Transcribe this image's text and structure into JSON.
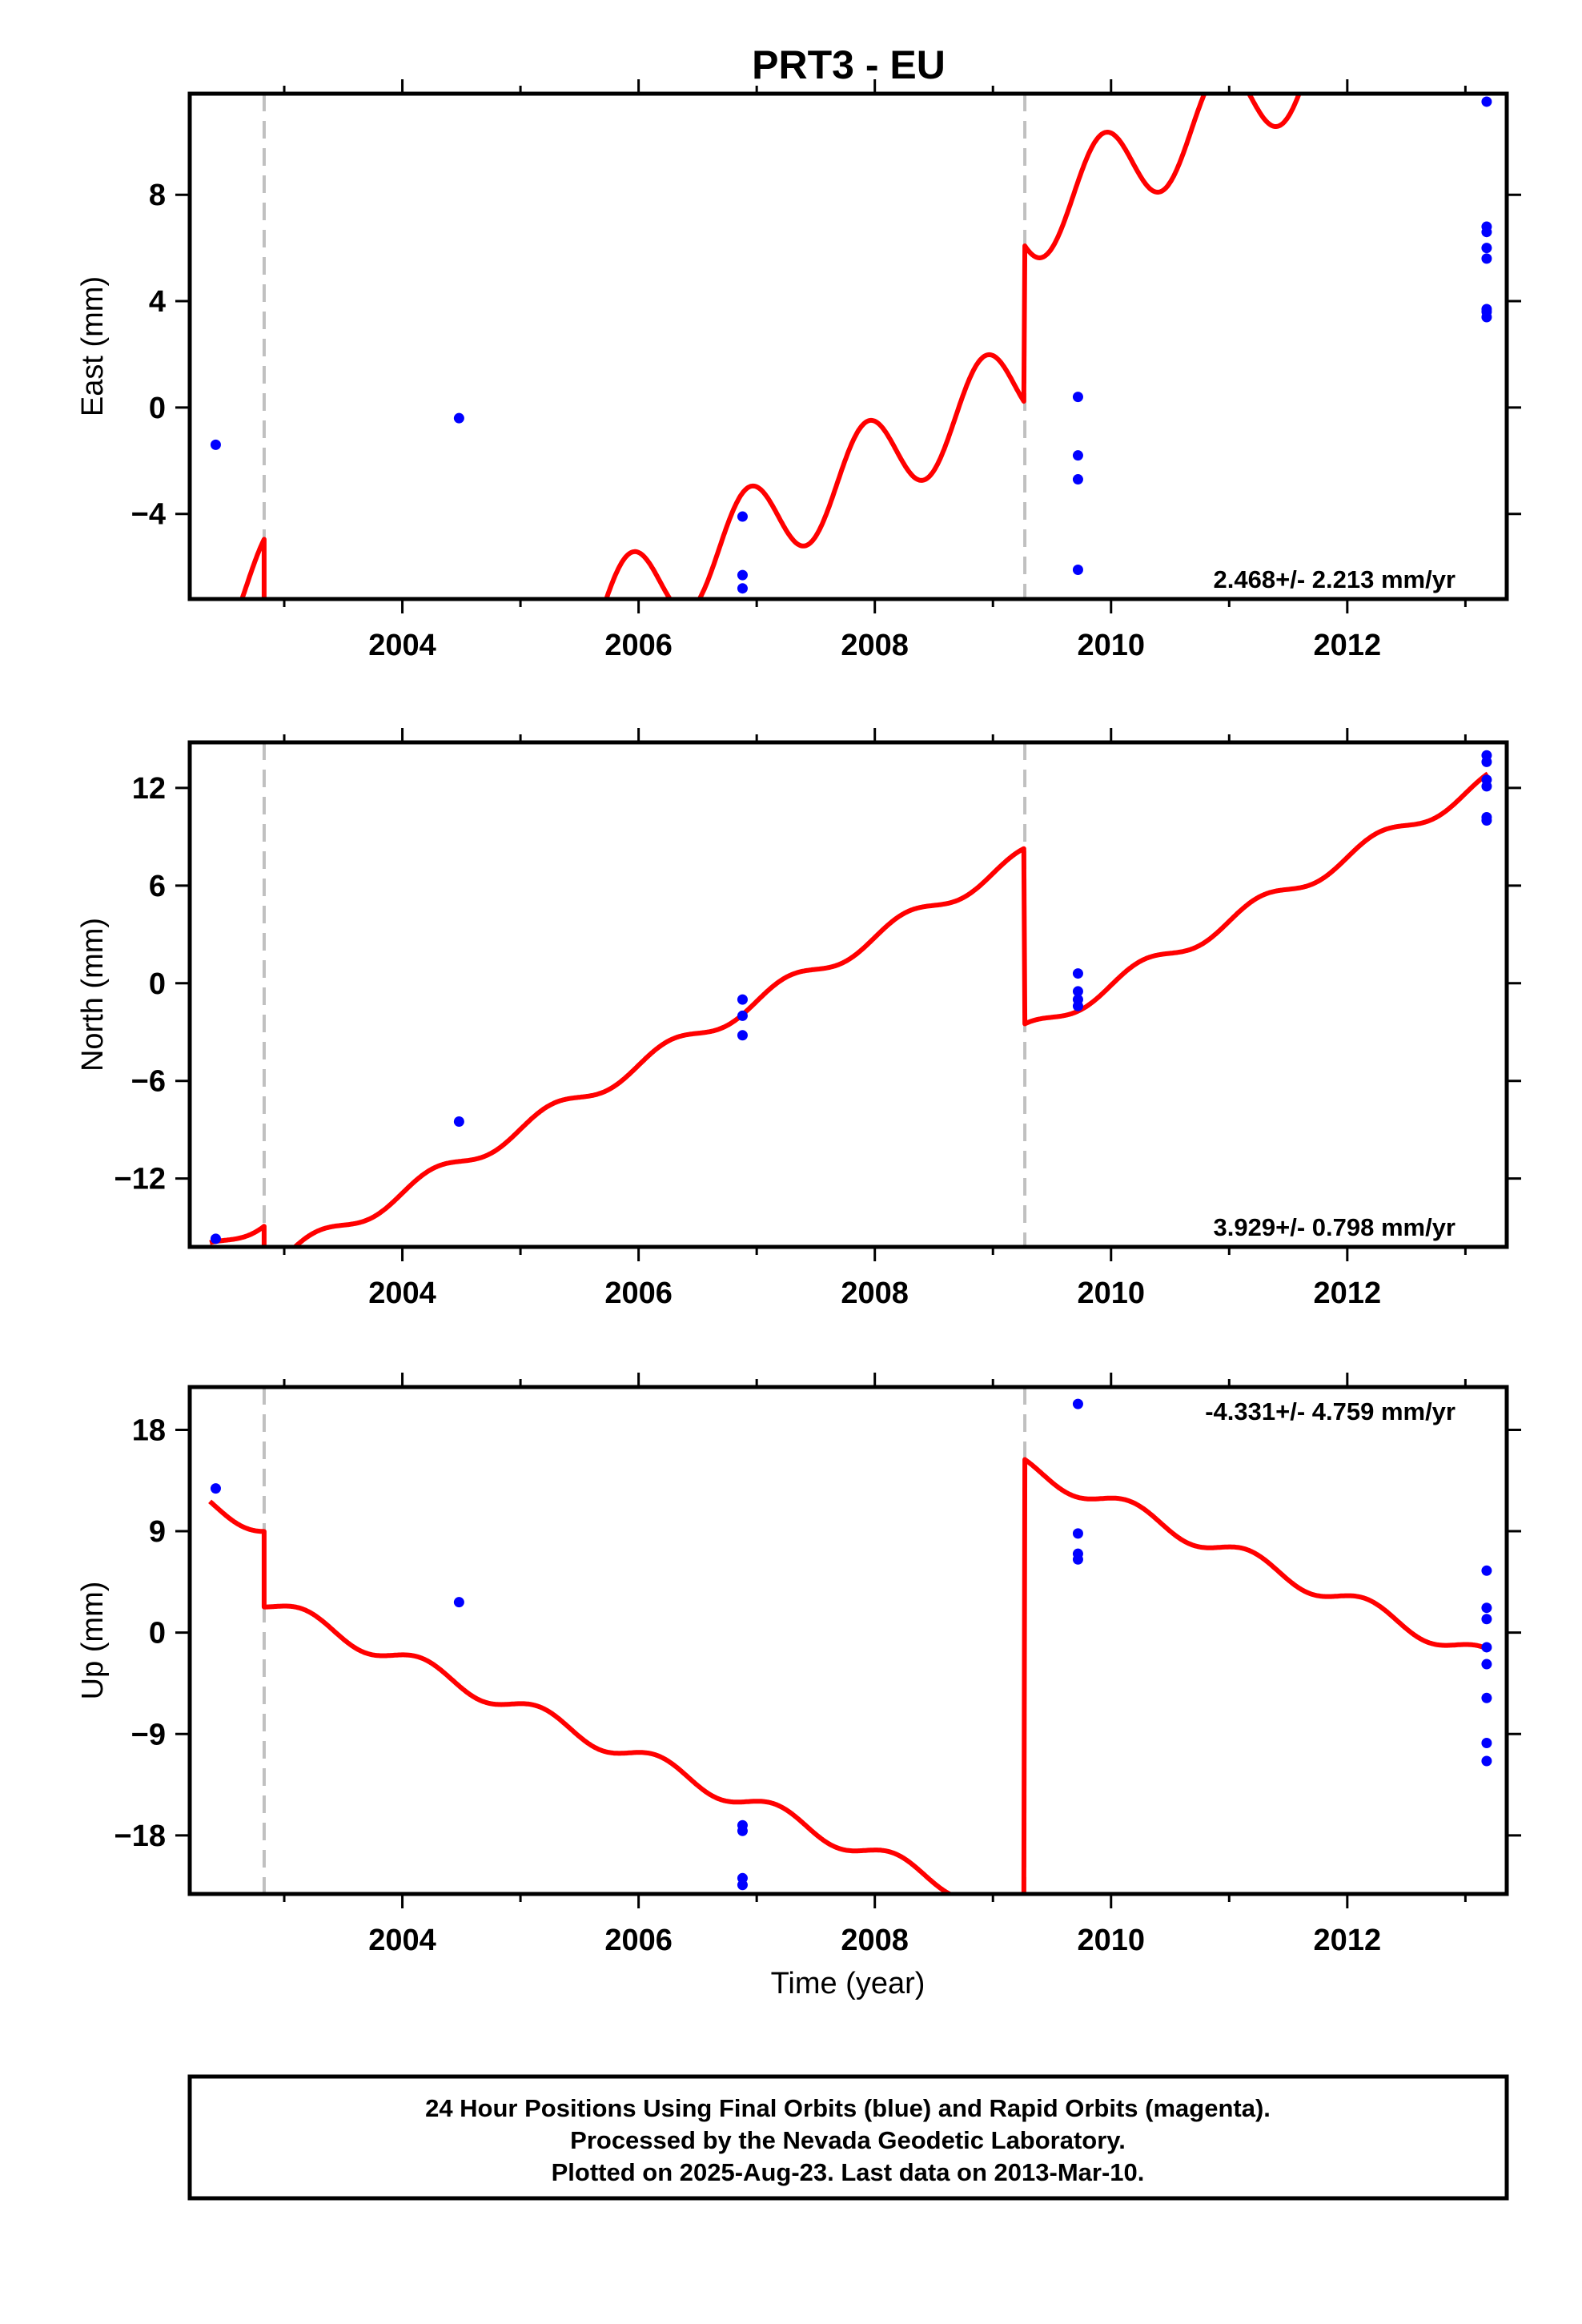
{
  "title": "PRT3 - EU",
  "footer": {
    "lines": [
      "24 Hour Positions Using Final Orbits (blue) and Rapid Orbits (magenta).",
      "Processed by the Nevada Geodetic Laboratory.",
      "Plotted on 2025-Aug-23. Last data on 2013-Mar-10."
    ]
  },
  "colors": {
    "model_line": "#ff0000",
    "final_orbit_points": "#0000ff",
    "offset_lines": "#c0c0c0",
    "frame": "#000000"
  },
  "chart_data": [
    {
      "type": "scatter",
      "panel": "east",
      "ylabel": "East (mm)",
      "xlabel": "",
      "rate_label": "2.468+/- 2.213 mm/yr",
      "xlim": [
        2002.2,
        2013.35
      ],
      "ylim": [
        -7.2,
        11.8
      ],
      "yticks": [
        -4,
        0,
        4,
        8
      ],
      "ytick_labels": [
        "−4",
        "0",
        "4",
        "8"
      ],
      "xticks": [
        2004,
        2006,
        2008,
        2010,
        2012
      ],
      "xtick_labels": [
        "2004",
        "2006",
        "2008",
        "2010",
        "2012"
      ],
      "offsets": [
        2002.83,
        2009.27
      ],
      "model": {
        "rate": 2.468,
        "anchor_x": 2006.93,
        "anchor_y": -3.0,
        "annual": 1.7,
        "phase": 2.0,
        "jumps": [
          -8.5,
          5.9
        ]
      },
      "series": [
        {
          "x": [
            2002.42,
            2004.48,
            2006.88,
            2006.88,
            2006.88,
            2009.72,
            2009.72,
            2009.72,
            2009.72,
            2013.18,
            2013.18,
            2013.18,
            2013.18,
            2013.18,
            2013.18,
            2013.18,
            2013.18
          ],
          "y": [
            -1.4,
            -0.4,
            -4.1,
            -6.3,
            -6.8,
            0.4,
            -1.8,
            -2.7,
            -6.1,
            11.5,
            6.8,
            6.6,
            6.0,
            5.6,
            3.7,
            3.6,
            3.4
          ]
        }
      ]
    },
    {
      "type": "scatter",
      "panel": "north",
      "ylabel": "North (mm)",
      "xlabel": "",
      "rate_label": "3.929+/- 0.798 mm/yr",
      "xlim": [
        2002.2,
        2013.35
      ],
      "ylim": [
        -16.2,
        14.8
      ],
      "yticks": [
        -12,
        -6,
        0,
        6,
        12
      ],
      "ytick_labels": [
        "−12",
        "−6",
        "0",
        "6",
        "12"
      ],
      "xticks": [
        2004,
        2006,
        2008,
        2010,
        2012
      ],
      "xtick_labels": [
        "2004",
        "2006",
        "2008",
        "2010",
        "2012"
      ],
      "offsets": [
        2002.83,
        2009.27
      ],
      "model": {
        "rate": 3.929,
        "anchor_x": 2006.93,
        "anchor_y": -1.6,
        "annual": 0.5,
        "phase": 0.0,
        "jumps": [
          -3.0,
          -10.8
        ]
      },
      "series": [
        {
          "x": [
            2002.42,
            2004.48,
            2006.88,
            2006.88,
            2006.88,
            2009.72,
            2009.72,
            2009.72,
            2009.72,
            2013.18,
            2013.18,
            2013.18,
            2013.18,
            2013.18,
            2013.18
          ],
          "y": [
            -15.7,
            -8.5,
            -1.0,
            -2.0,
            -3.2,
            0.6,
            -0.5,
            -1.0,
            -1.4,
            14.0,
            13.6,
            12.5,
            12.1,
            10.2,
            10.0
          ]
        }
      ]
    },
    {
      "type": "scatter",
      "panel": "up",
      "ylabel": "Up (mm)",
      "xlabel": "Time (year)",
      "rate_label": "-4.331+/- 4.759 mm/yr",
      "xlim": [
        2002.2,
        2013.35
      ],
      "ylim": [
        -23.2,
        21.8
      ],
      "yticks": [
        -18,
        -9,
        0,
        9,
        18
      ],
      "ytick_labels": [
        "−18",
        "−9",
        "0",
        "9",
        "18"
      ],
      "xticks": [
        2004,
        2006,
        2008,
        2010,
        2012
      ],
      "xtick_labels": [
        "2004",
        "2006",
        "2008",
        "2010",
        "2012"
      ],
      "offsets": [
        2002.83,
        2009.27
      ],
      "model": {
        "rate": -4.331,
        "anchor_x": 2006.93,
        "anchor_y": -15.0,
        "annual": 0.8,
        "phase": 0.5,
        "jumps": [
          -6.7,
          39.9
        ]
      },
      "series": [
        {
          "x": [
            2002.42,
            2004.48,
            2006.88,
            2006.88,
            2006.88,
            2006.88,
            2009.72,
            2009.72,
            2009.72,
            2009.72,
            2013.18,
            2013.18,
            2013.18,
            2013.18,
            2013.18,
            2013.18,
            2013.18,
            2013.18
          ],
          "y": [
            12.8,
            2.7,
            -17.1,
            -17.6,
            -21.8,
            -22.4,
            20.3,
            8.8,
            7.0,
            6.5,
            5.5,
            2.2,
            1.2,
            -1.3,
            -2.8,
            -5.8,
            -9.8,
            -11.4
          ]
        }
      ]
    }
  ]
}
